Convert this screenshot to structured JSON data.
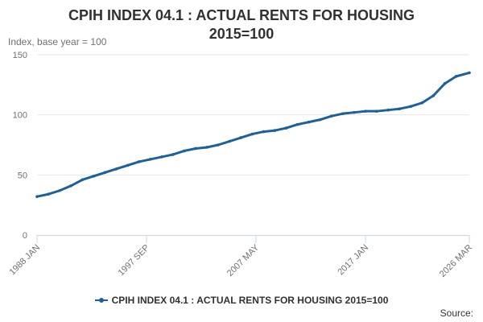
{
  "title_line1": "CPIH INDEX 04.1 : ACTUAL RENTS FOR HOUSING",
  "title_line2": "2015=100",
  "y_axis_label": "Index, base year = 100",
  "legend_label": "CPIH INDEX 04.1 : ACTUAL RENTS FOR HOUSING 2015=100",
  "source_label": "Source:",
  "chart_data": {
    "type": "line",
    "title": "CPIH INDEX 04.1 : ACTUAL RENTS FOR HOUSING 2015=100",
    "ylabel": "Index, base year = 100",
    "xlabel": "",
    "ylim": [
      0,
      150
    ],
    "yticks": [
      0,
      50,
      100,
      150
    ],
    "xticks": [
      "1988 JAN",
      "1997 SEP",
      "2007 MAY",
      "2017 JAN",
      "2026 MAR"
    ],
    "grid": true,
    "legend_position": "bottom",
    "color": "#206095",
    "series": [
      {
        "name": "CPIH INDEX 04.1 : ACTUAL RENTS FOR HOUSING 2015=100",
        "x": [
          "1988 JAN",
          "1989 JAN",
          "1990 JAN",
          "1991 JAN",
          "1992 JAN",
          "1993 JAN",
          "1994 JAN",
          "1995 JAN",
          "1996 JAN",
          "1997 JAN",
          "1998 JAN",
          "1999 JAN",
          "2000 JAN",
          "2001 JAN",
          "2002 JAN",
          "2003 JAN",
          "2004 JAN",
          "2005 JAN",
          "2006 JAN",
          "2007 JAN",
          "2008 JAN",
          "2009 JAN",
          "2010 JAN",
          "2011 JAN",
          "2012 JAN",
          "2013 JAN",
          "2014 JAN",
          "2015 JAN",
          "2016 JAN",
          "2017 JAN",
          "2018 JAN",
          "2019 JAN",
          "2020 JAN",
          "2021 JAN",
          "2022 JAN",
          "2023 JAN",
          "2024 JAN",
          "2025 JAN",
          "2026 MAR"
        ],
        "values": [
          32,
          34,
          37,
          41,
          46,
          49,
          52,
          55,
          58,
          61,
          63,
          65,
          67,
          70,
          72,
          73,
          75,
          78,
          81,
          84,
          86,
          87,
          89,
          92,
          94,
          96,
          99,
          101,
          102,
          103,
          103,
          104,
          105,
          107,
          110,
          116,
          126,
          132,
          135
        ]
      }
    ]
  }
}
